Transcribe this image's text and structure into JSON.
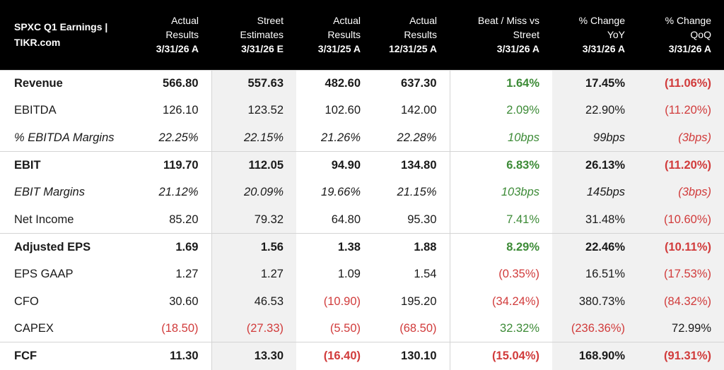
{
  "header": {
    "title": [
      "SPXC Q1 Earnings |",
      "TIKR.com"
    ],
    "columns": [
      {
        "lines": [
          "Actual",
          "Results"
        ],
        "period": "3/31/26 A"
      },
      {
        "lines": [
          "Street",
          "Estimates"
        ],
        "period": "3/31/26 E"
      },
      {
        "lines": [
          "Actual",
          "Results"
        ],
        "period": "3/31/25 A"
      },
      {
        "lines": [
          "Actual",
          "Results"
        ],
        "period": "12/31/25 A"
      },
      {
        "lines": [
          "Beat / Miss vs",
          "Street"
        ],
        "period": "3/31/26 A"
      },
      {
        "lines": [
          "% Change",
          "YoY"
        ],
        "period": "3/31/26 A"
      },
      {
        "lines": [
          "% Change",
          "QoQ"
        ],
        "period": "3/31/26 A"
      }
    ]
  },
  "colors": {
    "positive": "#3d8b37",
    "negative": "#d13b3b",
    "header_bg": "#000000",
    "shade": "#f1f1f1"
  },
  "rows": [
    {
      "label": "Revenue",
      "style": "bold",
      "values": [
        "566.80",
        "557.63",
        "482.60",
        "637.30",
        "1.64%",
        "17.45%",
        "(11.06%)"
      ]
    },
    {
      "label": "EBITDA",
      "style": "normal",
      "values": [
        "126.10",
        "123.52",
        "102.60",
        "142.00",
        "2.09%",
        "22.90%",
        "(11.20%)"
      ]
    },
    {
      "label": "% EBITDA Margins",
      "style": "italic",
      "values": [
        "22.25%",
        "22.15%",
        "21.26%",
        "22.28%",
        "10bps",
        "99bps",
        "(3bps)"
      ]
    },
    {
      "label": "EBIT",
      "style": "bold",
      "values": [
        "119.70",
        "112.05",
        "94.90",
        "134.80",
        "6.83%",
        "26.13%",
        "(11.20%)"
      ]
    },
    {
      "label": "EBIT Margins",
      "style": "italic",
      "values": [
        "21.12%",
        "20.09%",
        "19.66%",
        "21.15%",
        "103bps",
        "145bps",
        "(3bps)"
      ]
    },
    {
      "label": "Net Income",
      "style": "normal",
      "values": [
        "85.20",
        "79.32",
        "64.80",
        "95.30",
        "7.41%",
        "31.48%",
        "(10.60%)"
      ]
    },
    {
      "label": "Adjusted EPS",
      "style": "bold",
      "values": [
        "1.69",
        "1.56",
        "1.38",
        "1.88",
        "8.29%",
        "22.46%",
        "(10.11%)"
      ]
    },
    {
      "label": "EPS GAAP",
      "style": "normal",
      "values": [
        "1.27",
        "1.27",
        "1.09",
        "1.54",
        "(0.35%)",
        "16.51%",
        "(17.53%)"
      ]
    },
    {
      "label": "CFO",
      "style": "normal",
      "values": [
        "30.60",
        "46.53",
        "(10.90)",
        "195.20",
        "(34.24%)",
        "380.73%",
        "(84.32%)"
      ]
    },
    {
      "label": "CAPEX",
      "style": "normal",
      "values": [
        "(18.50)",
        "(27.33)",
        "(5.50)",
        "(68.50)",
        "32.32%",
        "(236.36%)",
        "72.99%"
      ]
    },
    {
      "label": "FCF",
      "style": "bold",
      "values": [
        "11.30",
        "13.30",
        "(16.40)",
        "130.10",
        "(15.04%)",
        "168.90%",
        "(91.31%)"
      ]
    }
  ]
}
